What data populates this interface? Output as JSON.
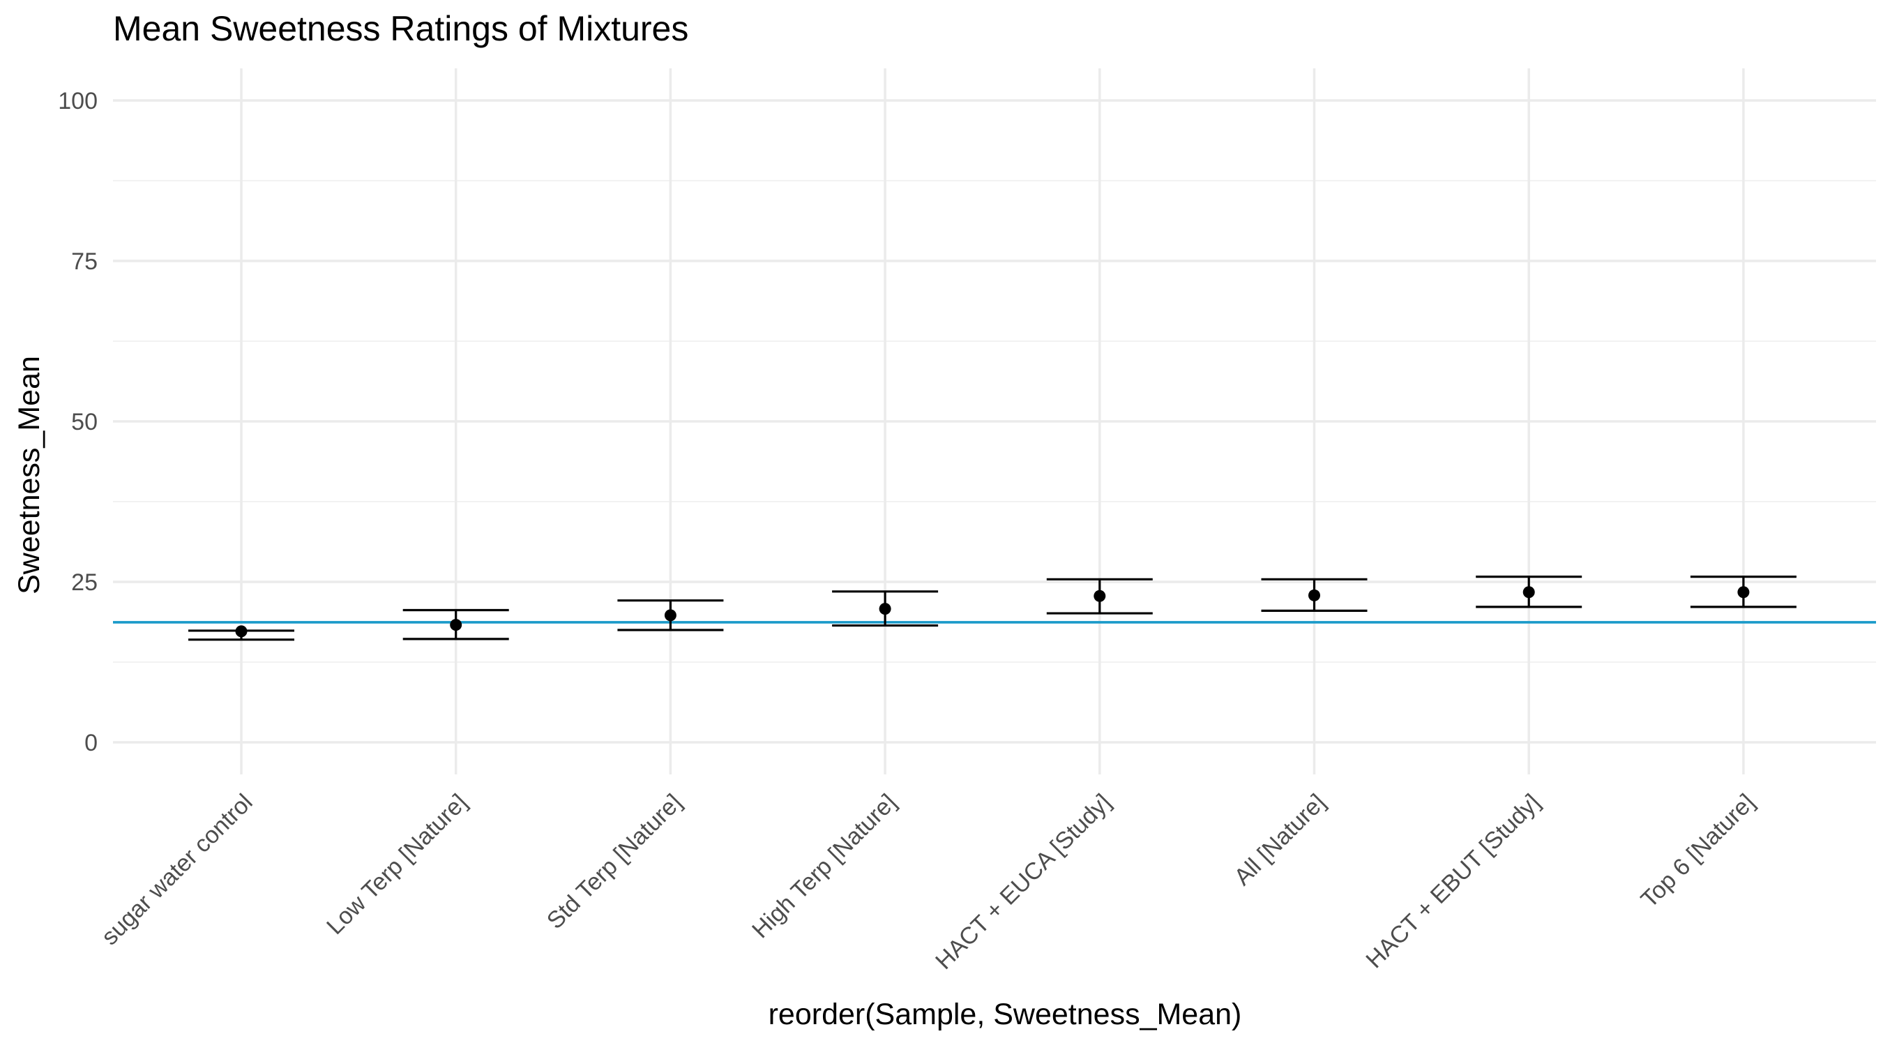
{
  "chart_data": {
    "type": "scatter",
    "title": "Mean Sweetness Ratings of Mixtures",
    "xlabel": "reorder(Sample, Sweetness_Mean)",
    "ylabel": "Sweetness_Mean",
    "ylim": [
      -5,
      105
    ],
    "yticks": [
      0,
      25,
      50,
      75,
      100
    ],
    "ytick_labels": [
      "0",
      "25",
      "50",
      "75",
      "100"
    ],
    "grid": true,
    "categories": [
      "sugar water control",
      "Low Terp [Nature]",
      "Std Terp [Nature]",
      "High Terp [Nature]",
      "HACT + EUCA [Study]",
      "All [Nature]",
      "HACT + EBUT [Study]",
      "Top 6 [Nature]"
    ],
    "series": [
      {
        "values": [
          17.3,
          18.3,
          19.8,
          20.8,
          22.8,
          22.9,
          23.4,
          23.4
        ],
        "error_lower": [
          16.0,
          16.1,
          17.5,
          18.2,
          20.1,
          20.5,
          21.1,
          21.1
        ],
        "error_upper": [
          17.4,
          20.6,
          22.1,
          23.5,
          25.4,
          25.4,
          25.8,
          25.8
        ]
      }
    ],
    "reference_line": {
      "y": 18.7,
      "color": "#1a9ac9"
    }
  }
}
